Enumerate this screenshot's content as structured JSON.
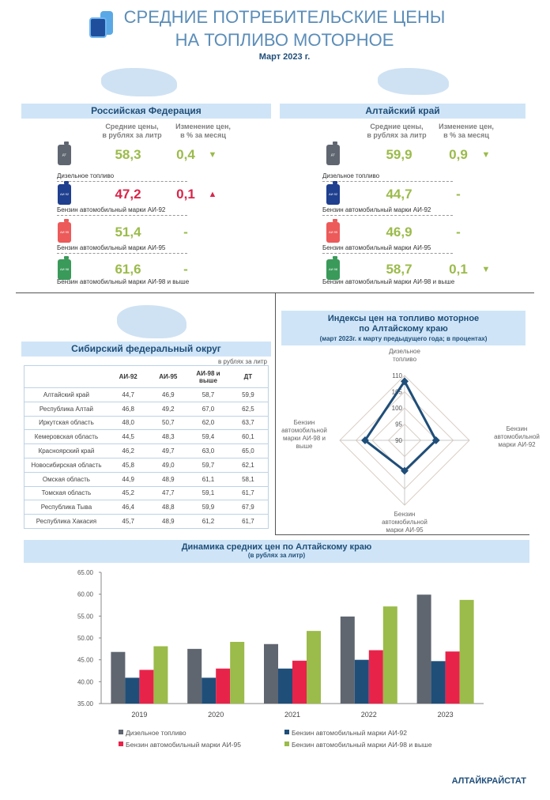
{
  "header": {
    "title_line1": "СРЕДНИЕ ПОТРЕБИТЕЛЬСКИЕ ЦЕНЫ",
    "title_line2": "НА ТОПЛИВО МОТОРНОЕ",
    "period": "Март  2023  г."
  },
  "columns": {
    "price": "Средние цены,\nв рублях за литр",
    "change": "Изменение цен,\nв %  за месяц"
  },
  "colors": {
    "diesel": "#5f6670",
    "ai92": "#1f4e79",
    "ai95": "#e8234a",
    "ai98": "#9bbb4a",
    "up": "#d9254a",
    "down": "#9bbb4a",
    "band": "#cfe5f7"
  },
  "panels": [
    {
      "title": "Российская Федерация",
      "rows": [
        {
          "fuel": "Дизельное  топливо",
          "can": "ДТ",
          "price": "58,3",
          "change": "0,4",
          "direction": "down",
          "price_color": "#9bbb4a"
        },
        {
          "fuel": "Бензин  автомобильный  марки  АИ-92",
          "can": "АИ 92",
          "price": "47,2",
          "change": "0,1",
          "direction": "up",
          "price_color": "#d9254a"
        },
        {
          "fuel": "Бензин  автомобильный  марки  АИ-95",
          "can": "АИ 95",
          "price": "51,4",
          "change": "-",
          "direction": "none",
          "price_color": "#9bbb4a"
        },
        {
          "fuel": "Бензин  автомобильный  марки  АИ-98  и выше",
          "can": "АИ 98",
          "price": "61,6",
          "change": "-",
          "direction": "none",
          "price_color": "#9bbb4a"
        }
      ]
    },
    {
      "title": "Алтайский край",
      "rows": [
        {
          "fuel": "Дизельное  топливо",
          "can": "ДТ",
          "price": "59,9",
          "change": "0,9",
          "direction": "down",
          "price_color": "#9bbb4a"
        },
        {
          "fuel": "Бензин  автомобильный  марки  АИ-92",
          "can": "АИ 92",
          "price": "44,7",
          "change": "-",
          "direction": "none",
          "price_color": "#9bbb4a"
        },
        {
          "fuel": "Бензин  автомобильный  марки  АИ-95",
          "can": "АИ 95",
          "price": "46,9",
          "change": "-",
          "direction": "none",
          "price_color": "#9bbb4a"
        },
        {
          "fuel": "Бензин  автомобильный  марки  АИ-98  и выше",
          "can": "АИ 98",
          "price": "58,7",
          "change": "0,1",
          "direction": "down",
          "price_color": "#9bbb4a"
        }
      ]
    }
  ],
  "sfo": {
    "title": "Сибирский федеральный округ",
    "unit": "в рублях за литр",
    "columns": [
      "",
      "АИ-92",
      "АИ-95",
      "АИ-98 и\nвыше",
      "ДТ"
    ],
    "rows": [
      [
        "Алтайский край",
        "44,7",
        "46,9",
        "58,7",
        "59,9"
      ],
      [
        "Республика Алтай",
        "46,8",
        "49,2",
        "67,0",
        "62,5"
      ],
      [
        "Иркутская область",
        "48,0",
        "50,7",
        "62,0",
        "63,7"
      ],
      [
        "Кемеровская область",
        "44,5",
        "48,3",
        "59,4",
        "60,1"
      ],
      [
        "Красноярский край",
        "46,2",
        "49,7",
        "63,0",
        "65,0"
      ],
      [
        "Новосибирская область",
        "45,8",
        "49,0",
        "59,7",
        "62,1"
      ],
      [
        "Омская область",
        "44,9",
        "48,9",
        "61,1",
        "58,1"
      ],
      [
        "Томская область",
        "45,2",
        "47,7",
        "59,1",
        "61,7"
      ],
      [
        "Республика Тыва",
        "46,4",
        "48,8",
        "59,9",
        "67,9"
      ],
      [
        "Республика Хакасия",
        "45,7",
        "48,9",
        "61,2",
        "61,7"
      ]
    ]
  },
  "chart_data": [
    {
      "type": "radar",
      "title": "Индексы цен на топливо моторное\nпо Алтайскому краю",
      "subtitle": "(март 2023г. к марту предыдущего года; в процентах)",
      "categories": [
        "Дизельное\nтопливо",
        "Бензин\nавтомобильной\nмарки АИ-92",
        "Бензин\nавтомобильной\nмарки АИ-95",
        "Бензин\nавтомобильной\nмарки АИ-98 и\nвыше"
      ],
      "values": [
        108.2,
        99.7,
        99.4,
        102.2
      ],
      "range": [
        90,
        110
      ],
      "ticks": [
        "90",
        "95",
        "100",
        "105",
        "110"
      ],
      "color": "#1f4e79"
    },
    {
      "type": "bar",
      "title": "Динамика средних цен по Алтайскому краю",
      "subtitle": "(в рублях за литр)",
      "categories": [
        "2019",
        "2020",
        "2021",
        "2022",
        "2023"
      ],
      "ylim": [
        35,
        65
      ],
      "yticks": [
        "65.00",
        "60.00",
        "55.00",
        "50.00",
        "45.00",
        "40.00",
        "35.00"
      ],
      "legend": "bottom",
      "series": [
        {
          "name": "Дизельное  топливо",
          "color": "#5f6670",
          "values": [
            46.8,
            47.5,
            48.6,
            54.9,
            59.9
          ]
        },
        {
          "name": "Бензин  автомобильный  марки  АИ-92",
          "color": "#1f4e79",
          "values": [
            40.9,
            40.9,
            43.0,
            45.0,
            44.7
          ]
        },
        {
          "name": "Бензин  автомобильный  марки  АИ-95",
          "color": "#e8234a",
          "values": [
            42.7,
            43.0,
            44.8,
            47.2,
            46.9
          ]
        },
        {
          "name": "Бензин  автомобильный  марки  АИ-98  и выше",
          "color": "#9bbb4a",
          "values": [
            48.1,
            49.1,
            51.6,
            57.2,
            58.7
          ]
        }
      ]
    }
  ],
  "footer": "АЛТАЙКРАЙСТАТ"
}
